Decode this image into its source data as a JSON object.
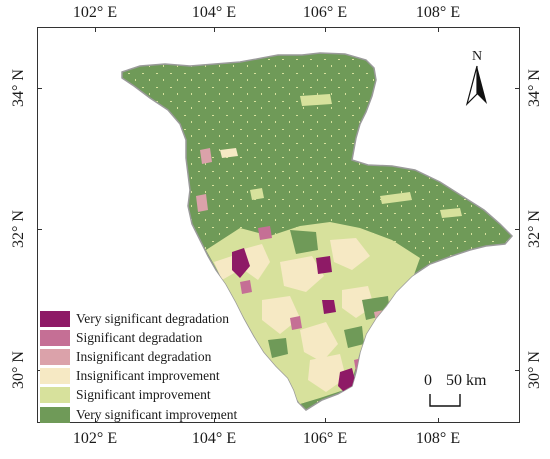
{
  "map": {
    "longitude_labels": [
      "102° E",
      "104° E",
      "106° E",
      "108° E"
    ],
    "latitude_labels": [
      "34° N",
      "32° N",
      "30° N"
    ],
    "north_label": "N",
    "scale": {
      "zero": "0",
      "distance": "50 km"
    },
    "legend": [
      {
        "label": "Very significant degradation",
        "color": "#8e1a66"
      },
      {
        "label": "Significant degradation",
        "color": "#c56f95"
      },
      {
        "label": "Insignificant degradation",
        "color": "#dba2aa"
      },
      {
        "label": "Insignificant improvement",
        "color": "#f6e9c4"
      },
      {
        "label": "Significant improvement",
        "color": "#d7e19c"
      },
      {
        "label": "Very significant improvement",
        "color": "#6f9a58"
      }
    ]
  }
}
